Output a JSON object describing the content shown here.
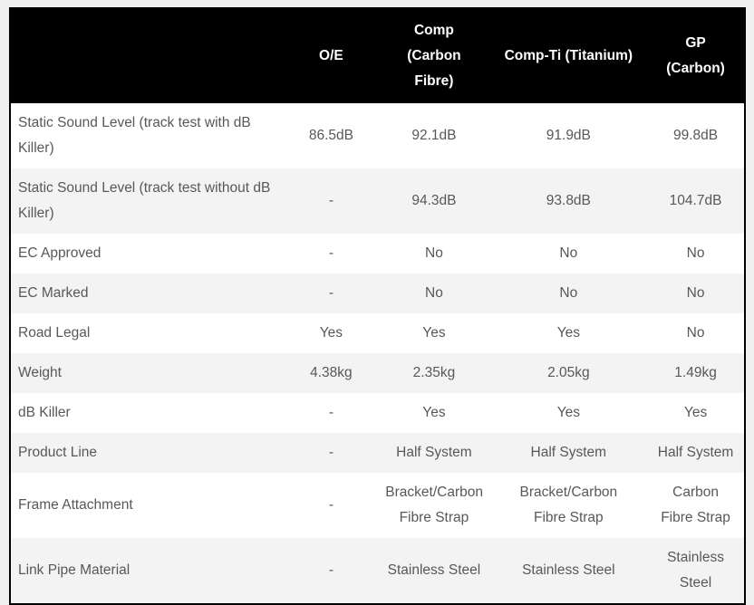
{
  "page": {
    "background_color": "#f0f0f0"
  },
  "table": {
    "header_bg": "#000000",
    "header_text_color": "#ffffff",
    "row_alt_bg": "#f3f3f3",
    "body_text_color": "#56585a",
    "border_color": "#000000",
    "columns": [
      "",
      "O/E",
      "Comp (Carbon\nFibre)",
      "Comp-Ti (Titanium)",
      "GP (Carbon)"
    ],
    "rows": [
      {
        "label": "Static Sound Level (track test with dB\nKiller)",
        "values": [
          "86.5dB",
          "92.1dB",
          "91.9dB",
          "99.8dB"
        ]
      },
      {
        "label": "Static Sound Level (track test without dB\nKiller)",
        "values": [
          "-",
          "94.3dB",
          "93.8dB",
          "104.7dB"
        ]
      },
      {
        "label": "EC Approved",
        "values": [
          "-",
          "No",
          "No",
          "No"
        ]
      },
      {
        "label": "EC Marked",
        "values": [
          "-",
          "No",
          "No",
          "No"
        ]
      },
      {
        "label": "Road Legal",
        "values": [
          "Yes",
          "Yes",
          "Yes",
          "No"
        ]
      },
      {
        "label": "Weight",
        "values": [
          "4.38kg",
          "2.35kg",
          "2.05kg",
          "1.49kg"
        ]
      },
      {
        "label": "dB Killer",
        "values": [
          "-",
          "Yes",
          "Yes",
          "Yes"
        ]
      },
      {
        "label": "Product Line",
        "values": [
          "-",
          "Half System",
          "Half System",
          "Half System"
        ]
      },
      {
        "label": "Frame Attachment",
        "values": [
          "-",
          "Bracket/Carbon\nFibre Strap",
          "Bracket/Carbon\nFibre Strap",
          "Carbon\nFibre Strap"
        ]
      },
      {
        "label": "Link Pipe Material",
        "values": [
          "-",
          "Stainless Steel",
          "Stainless Steel",
          "Stainless\nSteel"
        ]
      }
    ]
  }
}
